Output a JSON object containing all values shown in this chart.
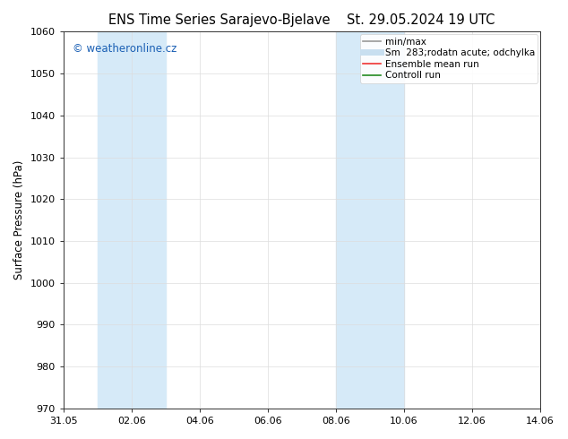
{
  "title_left": "ENS Time Series Sarajevo-Bjelave",
  "title_right": "St. 29.05.2024 19 UTC",
  "ylabel": "Surface Pressure (hPa)",
  "ylim": [
    970,
    1060
  ],
  "yticks": [
    970,
    980,
    990,
    1000,
    1010,
    1020,
    1030,
    1040,
    1050,
    1060
  ],
  "xtick_labels": [
    "31.05",
    "02.06",
    "04.06",
    "06.06",
    "08.06",
    "10.06",
    "12.06",
    "14.06"
  ],
  "xtick_positions": [
    0,
    2,
    4,
    6,
    8,
    10,
    12,
    14
  ],
  "xlim": [
    0,
    14
  ],
  "shaded_regions": [
    {
      "xstart": 1.0,
      "xend": 3.0,
      "color": "#d6eaf8"
    },
    {
      "xstart": 8.0,
      "xend": 10.0,
      "color": "#d6eaf8"
    }
  ],
  "watermark": "© weatheronline.cz",
  "watermark_color": "#1a5fb4",
  "legend_entries": [
    {
      "label": "min/max",
      "color": "#999999",
      "lw": 1.2,
      "ls": "-"
    },
    {
      "label": "Sm  283;rodatn acute; odchylka",
      "color": "#c8dff0",
      "lw": 5,
      "ls": "-"
    },
    {
      "label": "Ensemble mean run",
      "color": "#ee3333",
      "lw": 1.2,
      "ls": "-"
    },
    {
      "label": "Controll run",
      "color": "#228b22",
      "lw": 1.2,
      "ls": "-"
    }
  ],
  "background_color": "#ffffff",
  "grid_color": "#dddddd",
  "title_fontsize": 10.5,
  "ylabel_fontsize": 8.5,
  "tick_fontsize": 8.0,
  "watermark_fontsize": 8.5,
  "legend_fontsize": 7.5
}
